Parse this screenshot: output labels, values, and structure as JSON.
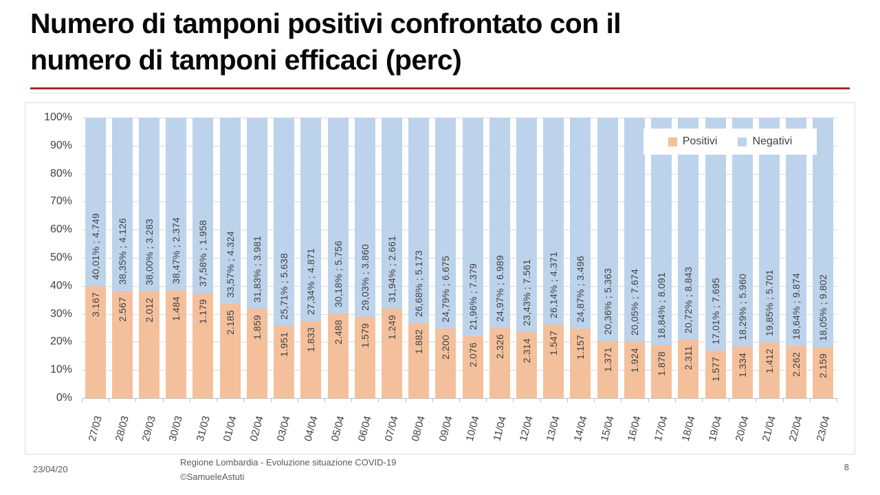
{
  "slide": {
    "title_line1": "Numero di tamponi positivi confrontato con il",
    "title_line2": "numero di tamponi efficaci (perc)",
    "footer": {
      "date": "23/04/20",
      "center_line1": "Regione Lombardia - Evoluzione situazione COVID-19",
      "center_line2": "©SamueleAstuti",
      "page_number": "8"
    }
  },
  "chart_data": {
    "type": "bar",
    "variant": "100%-stacked-column",
    "title": "",
    "xlabel": "",
    "ylabel": "",
    "grid": true,
    "legend_position": "inside-top-right",
    "y_axis": {
      "min": 0,
      "max": 100,
      "step": 10,
      "tick_labels": [
        "100%",
        "90%",
        "80%",
        "70%",
        "60%",
        "50%",
        "40%",
        "30%",
        "20%",
        "10%",
        "0%"
      ]
    },
    "categories": [
      "27/03",
      "28/03",
      "29/03",
      "30/03",
      "31/03",
      "01/04",
      "02/04",
      "03/04",
      "04/04",
      "05/04",
      "06/04",
      "07/04",
      "08/04",
      "09/04",
      "10/04",
      "11/04",
      "12/04",
      "13/04",
      "14/04",
      "15/04",
      "16/04",
      "17/04",
      "18/04",
      "19/04",
      "20/04",
      "21/04",
      "22/04",
      "23/04"
    ],
    "series": [
      {
        "name": "Positivi",
        "color": "#F4C09C",
        "values": [
          3167,
          2567,
          2012,
          1484,
          1179,
          2185,
          1859,
          1951,
          1833,
          2488,
          1579,
          1249,
          1882,
          2200,
          2076,
          2326,
          2314,
          1547,
          1157,
          1371,
          1924,
          1878,
          2311,
          1577,
          1334,
          1412,
          2262,
          2159
        ],
        "bar_labels": [
          "3.167",
          "2.567",
          "2.012",
          "1.484",
          "1.179",
          "2.185",
          "1.859",
          "1.951",
          "1.833",
          "2.488",
          "1.579",
          "1.249",
          "1.882",
          "2.200",
          "2.076",
          "2.326",
          "2.314",
          "1.547",
          "1.157",
          "1.371",
          "1.924",
          "1.878",
          "2.311",
          "1.577",
          "1.334",
          "1.412",
          "2.262",
          "2.159"
        ]
      },
      {
        "name": "Negativi",
        "color": "#BDD3EB",
        "values": [
          4749,
          4126,
          3283,
          2374,
          1958,
          4324,
          3981,
          5638,
          4871,
          5756,
          3860,
          2661,
          5173,
          6675,
          7379,
          6989,
          7561,
          4371,
          3496,
          5363,
          7674,
          8091,
          8843,
          7695,
          5960,
          5701,
          9874,
          9802
        ],
        "bar_labels": [
          "40,01% ; 4.749",
          "38,35% ; 4.126",
          "38,00% ; 3.283",
          "38,47% ; 2.374",
          "37,58% ; 1.958",
          "33,57% ; 4.324",
          "31,83% ; 3.981",
          "25,71% ; 5.638",
          "27,34% ; 4.871",
          "30,18% ; 5.756",
          "29,03% ; 3.860",
          "31,94% ; 2.661",
          "26,68% ; 5.173",
          "24,79% ; 6.675",
          "21,96% ; 7.379",
          "24,97% ; 6.989",
          "23,43% ; 7.561",
          "26,14% ; 4.371",
          "24,87% ; 3.496",
          "20,36% ; 5.363",
          "20,05% ; 7.674",
          "18,84% ; 8.091",
          "20,72% ; 8.843",
          "17,01% ; 7.695",
          "18,29% ; 5.960",
          "19,85% ; 5.701",
          "18,64% ; 9.874",
          "18,05% ; 9.802"
        ]
      }
    ]
  }
}
